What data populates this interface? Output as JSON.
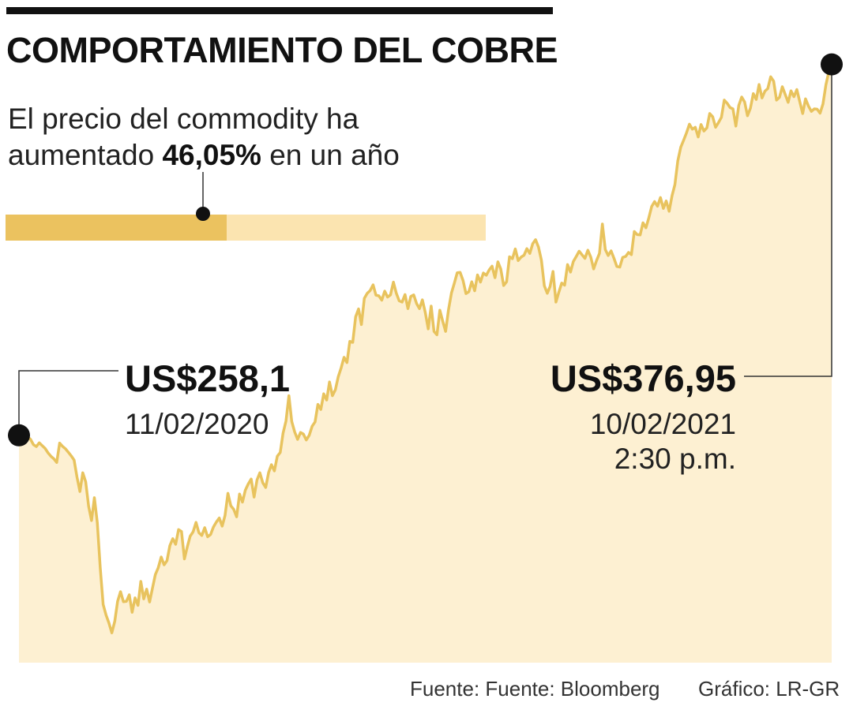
{
  "title": "COMPORTAMIENTO DEL COBRE",
  "subtitle": {
    "line1": "El precio del commodity ha",
    "line2_prefix": "aumentado ",
    "line2_bold": "46,05%",
    "line2_suffix": " en un año"
  },
  "progress_percent": 46.05,
  "start_callout": {
    "price": "US$258,1",
    "date": "11/02/2020"
  },
  "end_callout": {
    "price": "US$376,95",
    "date": "10/02/2021",
    "time": "2:30 p.m."
  },
  "footer": {
    "source": "Fuente: Fuente: Bloomberg",
    "credit": "Gráfico: LR-GR"
  },
  "colors": {
    "line": "#e8c35e",
    "area": "#fdf0d2",
    "bar_fill": "#ebc25f",
    "bar_track": "#fbe4b0",
    "dot": "#111111"
  },
  "chart_data": {
    "type": "area",
    "title": "COMPORTAMIENTO DEL COBRE",
    "xlabel": "",
    "ylabel": "",
    "x_start": "11/02/2020",
    "x_end": "10/02/2021",
    "ylim": [
      185,
      390
    ],
    "grid": false,
    "values": [
      258.1,
      258.5,
      257.9,
      257.6,
      256.8,
      255.1,
      254.5,
      255.7,
      254.8,
      253.9,
      252.5,
      251.4,
      250.6,
      249.4,
      255.6,
      254.6,
      253.8,
      252.7,
      251.5,
      250.2,
      244.7,
      240.1,
      246.1,
      243.2,
      235.4,
      230.8,
      238.1,
      230.1,
      215.7,
      203.9,
      200.5,
      198.0,
      194.8,
      198.5,
      204.9,
      208.0,
      204.8,
      204.9,
      207.0,
      201.4,
      206.0,
      203.6,
      211.3,
      205.7,
      208.8,
      204.7,
      209.2,
      213.5,
      215.7,
      219.1,
      216.6,
      217.9,
      222.8,
      225.0,
      223.2,
      227.9,
      227.3,
      218.5,
      222.4,
      225.8,
      227.2,
      230.2,
      226.9,
      226.0,
      228.5,
      225.6,
      226.3,
      228.7,
      230.3,
      231.6,
      229.0,
      232.4,
      239.5,
      235.5,
      234.4,
      232.0,
      239.3,
      236.7,
      240.5,
      242.5,
      244.1,
      238.3,
      243.8,
      246.1,
      242.9,
      241.4,
      246.2,
      248.7,
      246.7,
      251.4,
      252.6,
      258.8,
      262.7,
      270.8,
      262.5,
      259.2,
      256.8,
      259.0,
      258.5,
      256.6,
      258.1,
      261.0,
      262.4,
      268.0,
      266.4,
      271.4,
      269.4,
      275.2,
      270.8,
      272.7,
      276.9,
      279.7,
      283.1,
      281.4,
      288.2,
      287.9,
      296.1,
      298.6,
      293.6,
      302.0,
      303.6,
      304.5,
      306.3,
      303.0,
      302.8,
      301.4,
      304.3,
      302.4,
      303.1,
      307.2,
      303.6,
      301.2,
      300.8,
      303.2,
      298.7,
      302.6,
      303.1,
      300.3,
      298.7,
      301.5,
      297.4,
      292.2,
      299.5,
      291.4,
      290.3,
      298.2,
      294.7,
      291.4,
      298.4,
      303.7,
      306.9,
      310.2,
      310.3,
      307.7,
      303.5,
      304.1,
      307.3,
      304.4,
      309.5,
      307.2,
      310.1,
      309.4,
      311.1,
      312.3,
      308.6,
      313.7,
      311.4,
      306.1,
      307.3,
      315.3,
      314.7,
      317.8,
      314.1,
      315.2,
      315.8,
      317.9,
      316.4,
      319.5,
      320.8,
      318.4,
      314.2,
      306.0,
      303.6,
      305.8,
      310.6,
      300.8,
      303.9,
      306.9,
      306.2,
      312.8,
      310.4,
      313.8,
      315.4,
      317.1,
      315.9,
      314.8,
      317.4,
      315.2,
      311.4,
      314.1,
      316.4,
      325.8,
      317.6,
      315.7,
      317.2,
      314.8,
      312.2,
      312.0,
      315.1,
      315.4,
      316.7,
      316.0,
      323.4,
      322.4,
      322.3,
      326.2,
      324.6,
      327.8,
      331.4,
      333.0,
      331.5,
      334.3,
      330.8,
      333.2,
      329.9,
      334.9,
      338.4,
      346.1,
      350.4,
      352.7,
      355.1,
      357.8,
      356.2,
      356.8,
      353.7,
      357.7,
      355.6,
      356.6,
      361.2,
      360.2,
      356.8,
      358.3,
      360.0,
      365.5,
      364.5,
      363.1,
      362.7,
      357.2,
      363.8,
      366.5,
      364.9,
      360.5,
      362.9,
      367.6,
      365.7,
      370.5,
      366.2,
      368.4,
      369.2,
      373.0,
      371.6,
      365.5,
      366.4,
      369.8,
      367.3,
      364.8,
      368.5,
      366.6,
      368.9,
      365.0,
      361.2,
      365.9,
      363.6,
      361.9,
      362.7,
      362.6,
      361.3,
      364.3,
      370.4,
      374.5,
      376.95
    ]
  }
}
